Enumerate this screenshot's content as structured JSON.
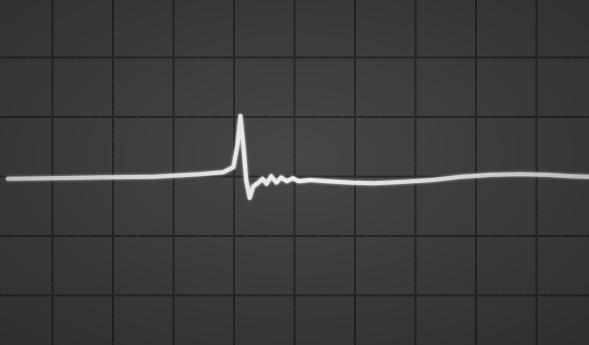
{
  "screen": {
    "background_color": "#474747",
    "grid_color": "#2a2a2a",
    "trace_color": "#f4f4f4",
    "grid": {
      "horizontal_divisions": 10,
      "vertical_divisions": 6,
      "minor_ticks_per_division": 5
    }
  },
  "trace": {
    "description_points": [
      [
        0,
        0.02
      ],
      [
        0.8,
        0.03
      ],
      [
        1.6,
        0.04
      ],
      [
        2.5,
        0.05
      ],
      [
        3.3,
        0.09
      ],
      [
        3.7,
        0.12
      ],
      [
        3.88,
        0.2
      ],
      [
        3.95,
        0.55
      ],
      [
        4.0,
        1.0
      ],
      [
        4.05,
        0.55
      ],
      [
        4.1,
        0.0
      ],
      [
        4.16,
        -0.28
      ],
      [
        4.22,
        -0.1
      ],
      [
        4.3,
        -0.05
      ],
      [
        4.38,
        0.02
      ],
      [
        4.45,
        -0.06
      ],
      [
        4.53,
        0.06
      ],
      [
        4.62,
        -0.04
      ],
      [
        4.7,
        0.04
      ],
      [
        4.8,
        -0.02
      ],
      [
        4.9,
        0.03
      ],
      [
        5.0,
        -0.02
      ],
      [
        5.2,
        0.0
      ],
      [
        5.5,
        -0.02
      ],
      [
        5.9,
        -0.04
      ],
      [
        6.3,
        -0.05
      ],
      [
        6.8,
        -0.03
      ],
      [
        7.3,
        0.0
      ],
      [
        7.8,
        0.05
      ],
      [
        8.3,
        0.08
      ],
      [
        8.8,
        0.09
      ],
      [
        9.3,
        0.08
      ],
      [
        9.7,
        0.06
      ],
      [
        10.0,
        0.05
      ]
    ]
  }
}
